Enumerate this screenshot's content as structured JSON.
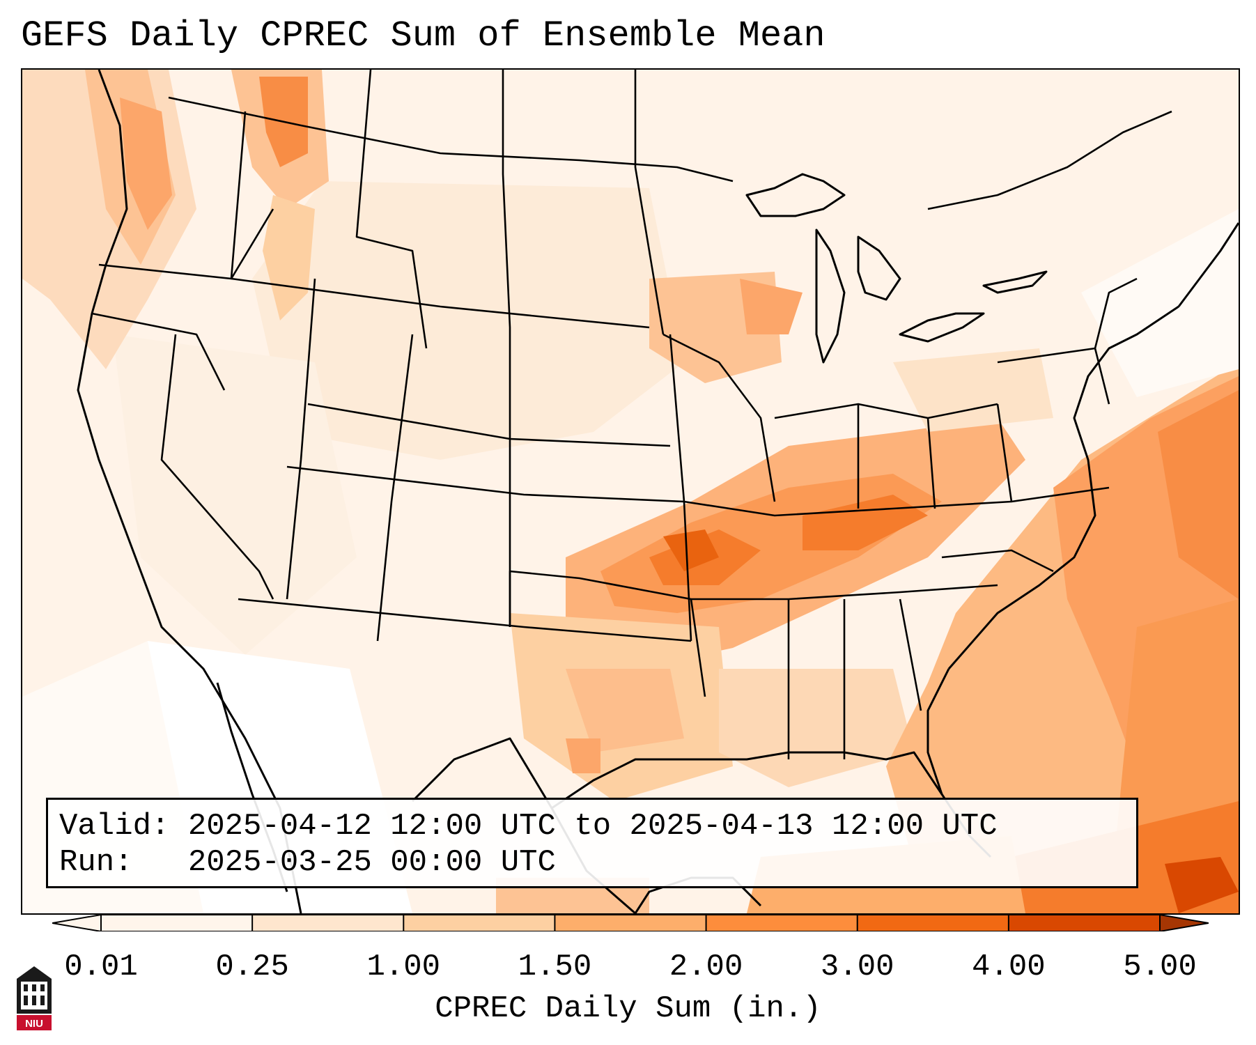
{
  "title": "GEFS Daily CPREC Sum of Ensemble Mean",
  "info": {
    "valid_line": "Valid: 2025-04-12 12:00 UTC to 2025-04-13 12:00 UTC",
    "run_line": "Run:   2025-03-25 00:00 UTC"
  },
  "colorbar": {
    "label": "CPREC Daily Sum (in.)",
    "ticks": [
      "0.01",
      "0.25",
      "1.00",
      "1.50",
      "2.00",
      "3.00",
      "4.00",
      "5.00"
    ],
    "colors": [
      "#fff5eb",
      "#fee6ce",
      "#fdd0a2",
      "#fdae6b",
      "#fd8d3c",
      "#f16913",
      "#d94801",
      "#a63603"
    ],
    "extend": "both"
  },
  "map": {
    "region": "Contiguous United States",
    "colormap": "Oranges"
  },
  "logo": {
    "text": "NIU",
    "icon": "niu-logo-icon"
  }
}
